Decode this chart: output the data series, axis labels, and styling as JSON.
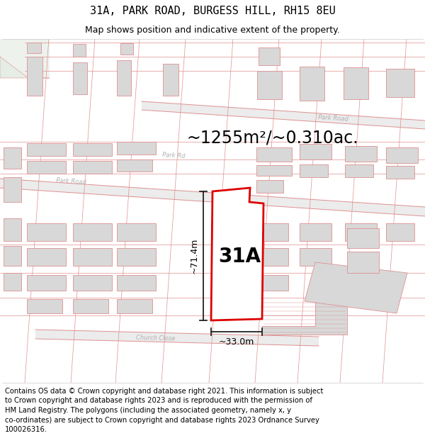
{
  "title": "31A, PARK ROAD, BURGESS HILL, RH15 8EU",
  "subtitle": "Map shows position and indicative extent of the property.",
  "area_label": "~1255m²/~0.310ac.",
  "plot_label": "31A",
  "dim_width": "~33.0m",
  "dim_height": "~71.4m",
  "footer": "Contains OS data © Crown copyright and database right 2021. This information is subject to Crown copyright and database rights 2023 and is reproduced with the permission of HM Land Registry. The polygons (including the associated geometry, namely x, y co-ordinates) are subject to Crown copyright and database rights 2023 Ordnance Survey 100026316.",
  "title_fontsize": 11,
  "subtitle_fontsize": 9,
  "area_fontsize": 17,
  "plot_label_fontsize": 20,
  "dim_fontsize": 9,
  "footer_fontsize": 7.2,
  "bg": "#f9f9f9",
  "road_line": "#e09090",
  "road_fill": "#f0f0f0",
  "bld_fill": "#d8d8d8",
  "bld_edge": "#e09090",
  "green_fill": "#e8f0e8",
  "red_edge": "#dd0000",
  "white_fill": "#ffffff",
  "dim_col": "#222222",
  "lbl_col": "#b0b0b0"
}
